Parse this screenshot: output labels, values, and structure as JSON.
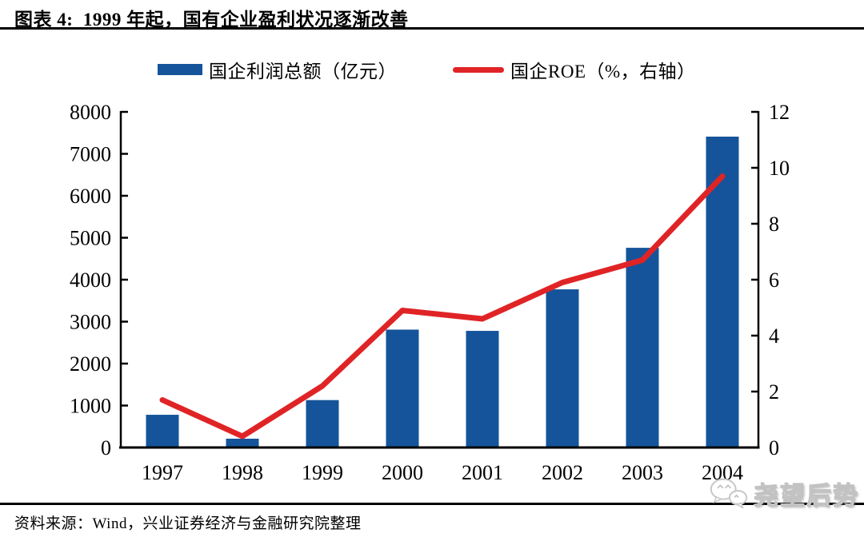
{
  "header": {
    "title": "图表 4:  1999 年起，国有企业盈利状况逐渐改善"
  },
  "chart_data": {
    "type": "bar+line",
    "title": "1999 年起，国有企业盈利状况逐渐改善",
    "categories": [
      "1997",
      "1998",
      "1999",
      "2000",
      "2001",
      "2002",
      "2003",
      "2004"
    ],
    "series": [
      {
        "name": "国企利润总额（亿元）",
        "type": "bar",
        "axis": "left",
        "color": "#15549A",
        "values": [
          780,
          210,
          1130,
          2810,
          2780,
          3770,
          4760,
          7410
        ]
      },
      {
        "name": "国企ROE（%，右轴）",
        "type": "line",
        "axis": "right",
        "color": "#E02426",
        "values": [
          1.7,
          0.4,
          2.2,
          4.9,
          4.6,
          5.9,
          6.7,
          9.7
        ]
      }
    ],
    "left_axis": {
      "label": "",
      "range": [
        0,
        8000
      ],
      "ticks": [
        0,
        1000,
        2000,
        3000,
        4000,
        5000,
        6000,
        7000,
        8000
      ]
    },
    "right_axis": {
      "label": "",
      "range": [
        0,
        12
      ],
      "ticks": [
        0,
        2,
        4,
        6,
        8,
        10,
        12
      ]
    },
    "grid": false,
    "legend_position": "top"
  },
  "footer": {
    "source": "资料来源：Wind，兴业证券经济与金融研究院整理"
  },
  "watermark": {
    "text": "尧望后势",
    "icon": "wechat-chat-bubbles"
  }
}
